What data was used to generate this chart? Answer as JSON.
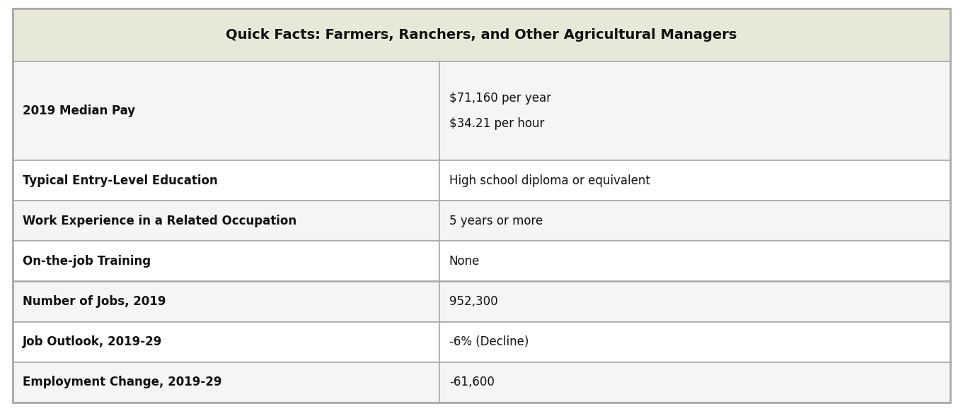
{
  "title": "Quick Facts: Farmers, Ranchers, and Other Agricultural Managers",
  "title_bg": "#e8e8d8",
  "title_font_size": 14,
  "rows": [
    {
      "label": "2019 Median Pay",
      "value": "$71,160 per year\n$34.21 per hour",
      "row_bg": "#f5f5f5",
      "multiline": true
    },
    {
      "label": "Typical Entry-Level Education",
      "value": "High school diploma or equivalent",
      "row_bg": "#ffffff",
      "multiline": false
    },
    {
      "label": "Work Experience in a Related Occupation",
      "value": "5 years or more",
      "row_bg": "#f5f5f5",
      "multiline": false
    },
    {
      "label": "On-the-job Training",
      "value": "None",
      "row_bg": "#ffffff",
      "multiline": false
    },
    {
      "label": "Number of Jobs, 2019",
      "value": "952,300",
      "row_bg": "#f5f5f5",
      "multiline": false
    },
    {
      "label": "Job Outlook, 2019-29",
      "value": "-6% (Decline)",
      "row_bg": "#ffffff",
      "multiline": false
    },
    {
      "label": "Employment Change, 2019-29",
      "value": "-61,600",
      "row_bg": "#f5f5f5",
      "multiline": false
    }
  ],
  "col_split": 0.455,
  "border_color": "#aaaaaa",
  "label_font_size": 12,
  "value_font_size": 12,
  "outer_bg": "#ffffff",
  "fig_width": 13.61,
  "fig_height": 5.82,
  "dpi": 100
}
